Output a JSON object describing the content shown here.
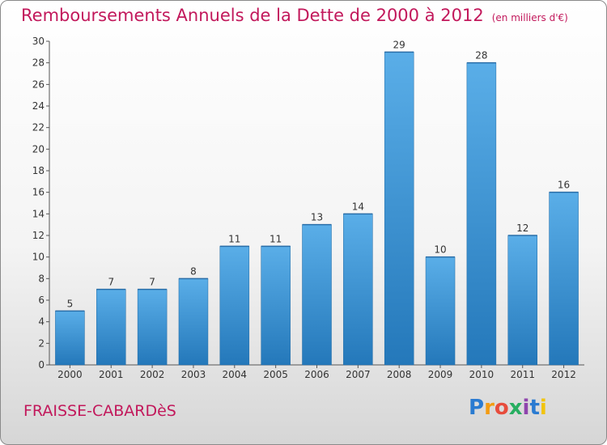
{
  "header": {
    "title": "Remboursements Annuels de la Dette de 2000 à 2012",
    "unit": "(en milliers d'€)"
  },
  "footer": {
    "commune": "FRAISSE-CABARDèS",
    "logo_text": "Proxiti"
  },
  "colors": {
    "title": "#c2185b",
    "bar_top": "#5aaee8",
    "bar_bottom": "#2478ba"
  },
  "chart_data": {
    "type": "bar",
    "title": "Remboursements Annuels de la Dette de 2000 à 2012",
    "xlabel": "",
    "ylabel": "",
    "categories": [
      "2000",
      "2001",
      "2002",
      "2003",
      "2004",
      "2005",
      "2006",
      "2007",
      "2008",
      "2009",
      "2010",
      "2011",
      "2012"
    ],
    "values": [
      5,
      7,
      7,
      8,
      11,
      11,
      13,
      14,
      29,
      10,
      28,
      12,
      16
    ],
    "ylim": [
      0,
      30
    ],
    "yticks": [
      0,
      2,
      4,
      6,
      8,
      10,
      12,
      14,
      16,
      18,
      20,
      22,
      24,
      26,
      28,
      30
    ],
    "grid": false,
    "legend": "none"
  }
}
